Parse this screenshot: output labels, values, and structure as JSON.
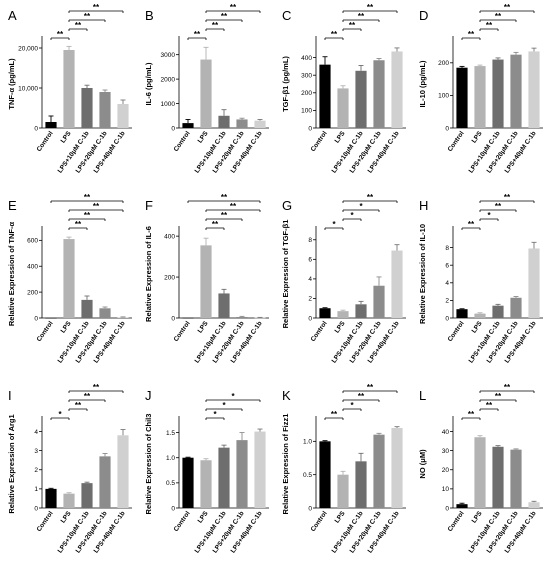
{
  "colors": {
    "bars": [
      "#000000",
      "#b3b3b3",
      "#6e6e6e",
      "#8c8c8c",
      "#d0d0d0"
    ]
  },
  "categories": [
    "Control",
    "LPS",
    "LPS+10μM C-1b",
    "LPS+20μM C-1b",
    "LPS+40μM C-1b"
  ],
  "chart_data": [
    {
      "panel": "A",
      "type": "bar",
      "ylabel": "TNF-α (pg/mL)",
      "ylim": [
        0,
        22000
      ],
      "yticks": [
        0,
        10000,
        20000
      ],
      "ytick_labels": [
        "0",
        "10,000",
        "20,000"
      ],
      "values": [
        1500,
        19500,
        10000,
        9000,
        6000
      ],
      "errors": [
        1500,
        900,
        700,
        500,
        1000
      ],
      "sig": [
        {
          "from": 0,
          "to": 1,
          "label": "**"
        },
        {
          "from": 1,
          "to": 2,
          "label": "**"
        },
        {
          "from": 1,
          "to": 3,
          "label": "**"
        },
        {
          "from": 1,
          "to": 4,
          "label": "**"
        }
      ]
    },
    {
      "panel": "B",
      "type": "bar",
      "ylabel": "IL-6 (pg/mL)",
      "ylim": [
        0,
        3600
      ],
      "yticks": [
        0,
        1000,
        2000,
        3000
      ],
      "ytick_labels": [
        "0",
        "1000",
        "2000",
        "3000"
      ],
      "values": [
        200,
        2800,
        500,
        350,
        300
      ],
      "errors": [
        150,
        500,
        250,
        50,
        50
      ],
      "sig": [
        {
          "from": 0,
          "to": 1,
          "label": "**"
        },
        {
          "from": 1,
          "to": 2,
          "label": "**"
        },
        {
          "from": 1,
          "to": 3,
          "label": "**"
        },
        {
          "from": 1,
          "to": 4,
          "label": "**"
        }
      ]
    },
    {
      "panel": "C",
      "type": "bar",
      "ylabel": "TGF-β1 (pg/mL)",
      "ylim": [
        0,
        500
      ],
      "yticks": [
        0,
        100,
        200,
        300,
        400
      ],
      "ytick_labels": [
        "0",
        "100",
        "200",
        "300",
        "400"
      ],
      "values": [
        360,
        225,
        325,
        385,
        435
      ],
      "errors": [
        45,
        15,
        30,
        10,
        20
      ],
      "sig": [
        {
          "from": 0,
          "to": 1,
          "label": "**"
        },
        {
          "from": 1,
          "to": 2,
          "label": "**"
        },
        {
          "from": 1,
          "to": 3,
          "label": "**"
        },
        {
          "from": 1,
          "to": 4,
          "label": "**"
        }
      ]
    },
    {
      "panel": "D",
      "type": "bar",
      "ylabel": "IL-10 (pg/mL)",
      "ylim": [
        0,
        270
      ],
      "yticks": [
        0,
        100,
        200
      ],
      "ytick_labels": [
        "0",
        "100",
        "200"
      ],
      "values": [
        185,
        190,
        210,
        225,
        235
      ],
      "errors": [
        4,
        3,
        5,
        7,
        10
      ],
      "sig": [
        {
          "from": 0,
          "to": 1,
          "label": "**"
        },
        {
          "from": 1,
          "to": 2,
          "label": "**"
        },
        {
          "from": 1,
          "to": 3,
          "label": "**"
        },
        {
          "from": 1,
          "to": 4,
          "label": "**"
        }
      ]
    },
    {
      "panel": "E",
      "type": "bar",
      "ylabel": "Relative Expression of TNF-α",
      "ylim": [
        0,
        680
      ],
      "yticks": [
        0,
        200,
        400,
        600
      ],
      "ytick_labels": [
        "0",
        "200",
        "400",
        "600"
      ],
      "values": [
        1,
        610,
        140,
        75,
        5
      ],
      "errors": [
        0,
        15,
        30,
        10,
        3
      ],
      "sig": [
        {
          "from": 1,
          "to": 2,
          "label": "**"
        },
        {
          "from": 1,
          "to": 3,
          "label": "**"
        },
        {
          "from": 1,
          "to": 4,
          "label": "**"
        },
        {
          "from": 0,
          "to": 4,
          "label": "**"
        }
      ]
    },
    {
      "panel": "F",
      "type": "bar",
      "ylabel": "Relative Expression of IL-6",
      "ylim": [
        0,
        430
      ],
      "yticks": [
        0,
        200,
        400
      ],
      "ytick_labels": [
        "0",
        "200",
        "400"
      ],
      "values": [
        1,
        355,
        120,
        5,
        2
      ],
      "errors": [
        0,
        35,
        20,
        3,
        1
      ],
      "sig": [
        {
          "from": 1,
          "to": 2,
          "label": "**"
        },
        {
          "from": 1,
          "to": 3,
          "label": "**"
        },
        {
          "from": 1,
          "to": 4,
          "label": "**"
        },
        {
          "from": 0,
          "to": 4,
          "label": "**"
        }
      ]
    },
    {
      "panel": "G",
      "type": "bar",
      "ylabel": "Relative Expression of TGF-β1",
      "ylim": [
        0,
        9
      ],
      "yticks": [
        0,
        2,
        4,
        6,
        8
      ],
      "ytick_labels": [
        "0",
        "2",
        "4",
        "6",
        "8"
      ],
      "values": [
        1.0,
        0.7,
        1.4,
        3.3,
        6.9
      ],
      "errors": [
        0.05,
        0.1,
        0.3,
        0.9,
        0.6
      ],
      "sig": [
        {
          "from": 0,
          "to": 1,
          "label": "*"
        },
        {
          "from": 1,
          "to": 2,
          "label": "*"
        },
        {
          "from": 1,
          "to": 3,
          "label": "*"
        },
        {
          "from": 1,
          "to": 4,
          "label": "**"
        }
      ]
    },
    {
      "panel": "H",
      "type": "bar",
      "ylabel": "Relative Expression of IL-10",
      "ylim": [
        0,
        10
      ],
      "yticks": [
        0,
        2,
        4,
        6,
        8
      ],
      "ytick_labels": [
        "0",
        "2",
        "4",
        "6",
        "8"
      ],
      "values": [
        1.0,
        0.5,
        1.4,
        2.3,
        7.9
      ],
      "errors": [
        0.05,
        0.1,
        0.15,
        0.15,
        0.7
      ],
      "sig": [
        {
          "from": 0,
          "to": 1,
          "label": "**"
        },
        {
          "from": 1,
          "to": 2,
          "label": "*"
        },
        {
          "from": 1,
          "to": 3,
          "label": "**"
        },
        {
          "from": 1,
          "to": 4,
          "label": "**"
        }
      ]
    },
    {
      "panel": "I",
      "type": "bar",
      "ylabel": "Relative Expression of Arg1",
      "ylim": [
        0,
        4.6
      ],
      "yticks": [
        0,
        1,
        2,
        3,
        4
      ],
      "ytick_labels": [
        "0",
        "1",
        "2",
        "3",
        "4"
      ],
      "values": [
        1.0,
        0.75,
        1.3,
        2.7,
        3.8
      ],
      "errors": [
        0.03,
        0.05,
        0.05,
        0.15,
        0.3
      ],
      "sig": [
        {
          "from": 0,
          "to": 1,
          "label": "*"
        },
        {
          "from": 1,
          "to": 2,
          "label": "**"
        },
        {
          "from": 1,
          "to": 3,
          "label": "**"
        },
        {
          "from": 1,
          "to": 4,
          "label": "**"
        }
      ]
    },
    {
      "panel": "J",
      "type": "bar",
      "ylabel": "Relative Expression of Chil3",
      "ylim": [
        0,
        1.75
      ],
      "yticks": [
        0,
        0.5,
        1.0,
        1.5
      ],
      "ytick_labels": [
        "0",
        "0.5",
        "1.0",
        "1.5"
      ],
      "values": [
        1.0,
        0.95,
        1.2,
        1.35,
        1.52
      ],
      "errors": [
        0.01,
        0.03,
        0.05,
        0.15,
        0.05
      ],
      "sig": [
        {
          "from": 1,
          "to": 2,
          "label": "*"
        },
        {
          "from": 1,
          "to": 3,
          "label": "*"
        },
        {
          "from": 1,
          "to": 4,
          "label": "*"
        }
      ]
    },
    {
      "panel": "K",
      "type": "bar",
      "ylabel": "Relative Expression of Fizz1",
      "ylim": [
        0,
        1.32
      ],
      "yticks": [
        0,
        0.5,
        1.0
      ],
      "ytick_labels": [
        "0",
        "0.5",
        "1.0"
      ],
      "values": [
        1.0,
        0.5,
        0.7,
        1.1,
        1.2
      ],
      "errors": [
        0.01,
        0.05,
        0.12,
        0.02,
        0.02
      ],
      "sig": [
        {
          "from": 0,
          "to": 1,
          "label": "**"
        },
        {
          "from": 1,
          "to": 2,
          "label": "*"
        },
        {
          "from": 1,
          "to": 3,
          "label": "**"
        },
        {
          "from": 1,
          "to": 4,
          "label": "**"
        }
      ]
    },
    {
      "panel": "L",
      "type": "bar",
      "ylabel": "NO (μM)",
      "ylim": [
        0,
        46
      ],
      "yticks": [
        0,
        10,
        20,
        30,
        40
      ],
      "ytick_labels": [
        "0",
        "10",
        "20",
        "30",
        "40"
      ],
      "values": [
        2,
        37,
        32,
        30.5,
        3
      ],
      "errors": [
        0.5,
        0.8,
        0.6,
        0.4,
        0.5
      ],
      "sig": [
        {
          "from": 0,
          "to": 1,
          "label": "**"
        },
        {
          "from": 1,
          "to": 2,
          "label": "**"
        },
        {
          "from": 1,
          "to": 3,
          "label": "**"
        },
        {
          "from": 1,
          "to": 4,
          "label": "**"
        }
      ]
    }
  ]
}
